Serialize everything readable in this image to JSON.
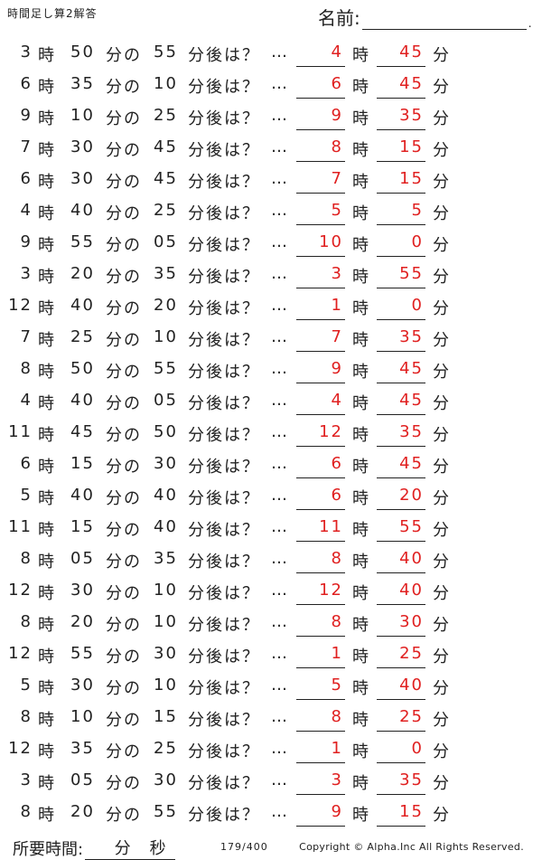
{
  "header": {
    "title": "時間足し算2解答",
    "name_label": "名前:",
    "name_dot": "."
  },
  "labels": {
    "ji": "時",
    "fun_no": "分の",
    "suffix": "分後は？",
    "dots": "…",
    "fun": "分"
  },
  "rows": [
    {
      "h": "3",
      "m": "50",
      "add": "55",
      "ah": "4",
      "am": "45"
    },
    {
      "h": "6",
      "m": "35",
      "add": "10",
      "ah": "6",
      "am": "45"
    },
    {
      "h": "9",
      "m": "10",
      "add": "25",
      "ah": "9",
      "am": "35"
    },
    {
      "h": "7",
      "m": "30",
      "add": "45",
      "ah": "8",
      "am": "15"
    },
    {
      "h": "6",
      "m": "30",
      "add": "45",
      "ah": "7",
      "am": "15"
    },
    {
      "h": "4",
      "m": "40",
      "add": "25",
      "ah": "5",
      "am": "5"
    },
    {
      "h": "9",
      "m": "55",
      "add": "05",
      "ah": "10",
      "am": "0"
    },
    {
      "h": "3",
      "m": "20",
      "add": "35",
      "ah": "3",
      "am": "55"
    },
    {
      "h": "12",
      "m": "40",
      "add": "20",
      "ah": "1",
      "am": "0"
    },
    {
      "h": "7",
      "m": "25",
      "add": "10",
      "ah": "7",
      "am": "35"
    },
    {
      "h": "8",
      "m": "50",
      "add": "55",
      "ah": "9",
      "am": "45"
    },
    {
      "h": "4",
      "m": "40",
      "add": "05",
      "ah": "4",
      "am": "45"
    },
    {
      "h": "11",
      "m": "45",
      "add": "50",
      "ah": "12",
      "am": "35"
    },
    {
      "h": "6",
      "m": "15",
      "add": "30",
      "ah": "6",
      "am": "45"
    },
    {
      "h": "5",
      "m": "40",
      "add": "40",
      "ah": "6",
      "am": "20"
    },
    {
      "h": "11",
      "m": "15",
      "add": "40",
      "ah": "11",
      "am": "55"
    },
    {
      "h": "8",
      "m": "05",
      "add": "35",
      "ah": "8",
      "am": "40"
    },
    {
      "h": "12",
      "m": "30",
      "add": "10",
      "ah": "12",
      "am": "40"
    },
    {
      "h": "8",
      "m": "20",
      "add": "10",
      "ah": "8",
      "am": "30"
    },
    {
      "h": "12",
      "m": "55",
      "add": "30",
      "ah": "1",
      "am": "25"
    },
    {
      "h": "5",
      "m": "30",
      "add": "10",
      "ah": "5",
      "am": "40"
    },
    {
      "h": "8",
      "m": "10",
      "add": "15",
      "ah": "8",
      "am": "25"
    },
    {
      "h": "12",
      "m": "35",
      "add": "25",
      "ah": "1",
      "am": "0"
    },
    {
      "h": "3",
      "m": "05",
      "add": "30",
      "ah": "3",
      "am": "35"
    },
    {
      "h": "8",
      "m": "20",
      "add": "55",
      "ah": "9",
      "am": "15"
    }
  ],
  "footer": {
    "time_label": "所要時間:",
    "fun": "分",
    "byou": "秒",
    "page": "179/400",
    "copyright": "Copyright ©  Alpha.Inc All Rights Reserved."
  },
  "colors": {
    "answer": "#e02020"
  }
}
